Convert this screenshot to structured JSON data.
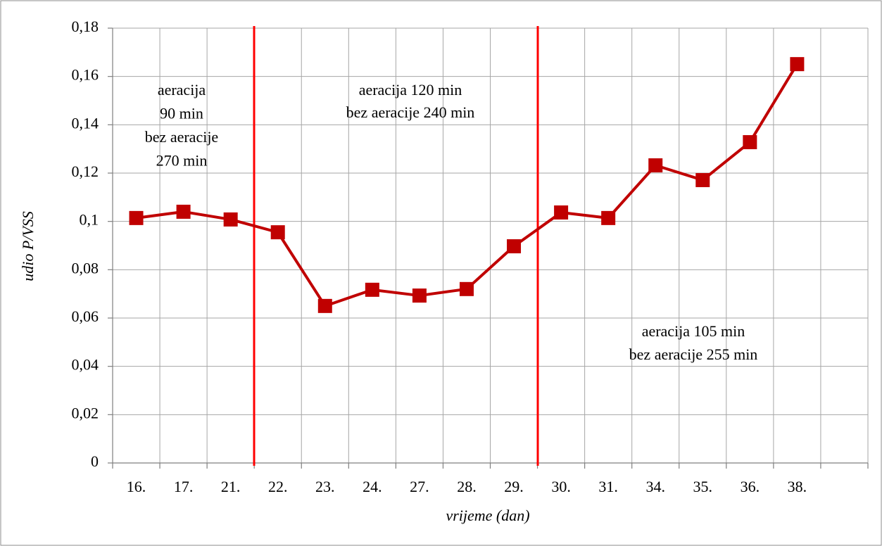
{
  "chart_data": {
    "type": "line",
    "x_label": "vrijeme (dan)",
    "y_label": "udio P/VSS",
    "categories": [
      "16.",
      "17.",
      "21.",
      "22.",
      "23.",
      "24.",
      "27.",
      "28.",
      "29.",
      "30.",
      "31.",
      "34.",
      "35.",
      "36.",
      "38.",
      null
    ],
    "series": [
      {
        "name": "udio P/VSS",
        "color": "#c00000",
        "values": [
          0.1014,
          0.104,
          0.1008,
          0.0955,
          0.065,
          0.0717,
          0.0693,
          0.072,
          0.0897,
          0.1037,
          0.1014,
          0.1232,
          0.1171,
          0.1328,
          0.1651,
          null
        ]
      }
    ],
    "ylim": [
      0,
      0.18
    ],
    "yticks": [
      0,
      {
        "value": 0.02,
        "label": "0,02"
      },
      {
        "value": 0.04,
        "label": "0,04"
      },
      {
        "value": 0.06,
        "label": "0,06"
      },
      {
        "value": 0.08,
        "label": "0,08"
      },
      {
        "value": 0.1,
        "label": "0,1"
      },
      {
        "value": 0.12,
        "label": "0,12"
      },
      {
        "value": 0.14,
        "label": "0,14"
      },
      {
        "value": 0.16,
        "label": "0,16"
      },
      {
        "value": 0.18,
        "label": "0,18"
      }
    ],
    "grid": true,
    "annotations": [
      {
        "lines": [
          "aeracija",
          "90 min",
          "bez aeracije",
          "270 min"
        ]
      },
      {
        "lines": [
          "aeracija 120 min",
          "bez aeracije 240 min"
        ]
      },
      {
        "lines": [
          "aeracija 105 min",
          "bez aeracije 255 min"
        ]
      }
    ]
  }
}
